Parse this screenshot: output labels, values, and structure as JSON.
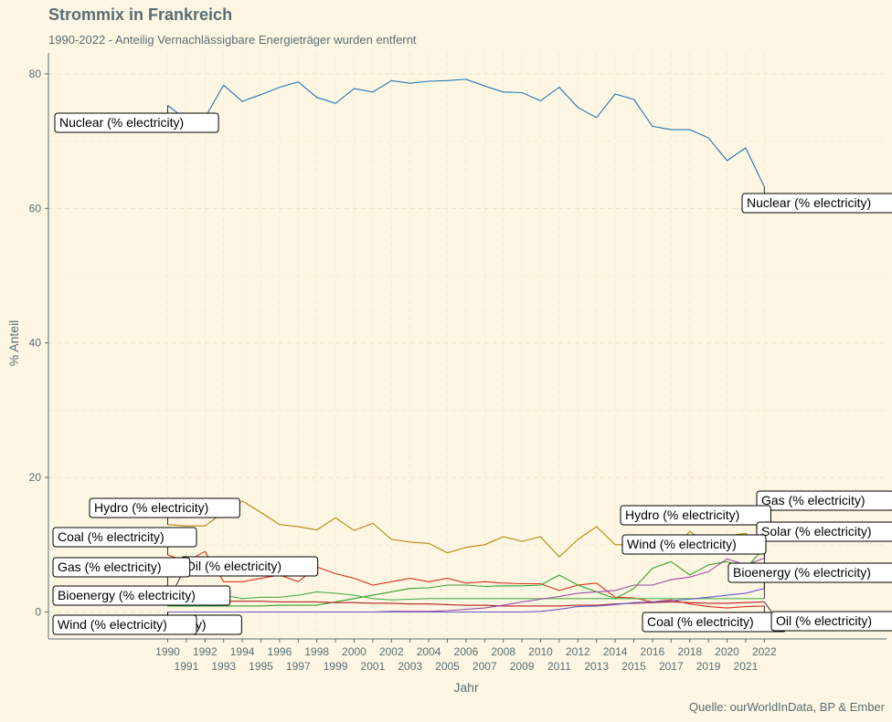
{
  "header": {
    "title": "Strommix in Frankreich",
    "subtitle": "1990-2022 - Anteilig Vernachlässigbare Energieträger wurden entfernt",
    "caption": "Quelle: ourWorldInData, BP & Ember"
  },
  "chart_data": {
    "type": "line",
    "title": "Strommix in Frankreich",
    "subtitle": "1990-2022 - Anteilig Vernachlässigbare Energieträger wurden entfernt",
    "xlabel": "Jahr",
    "ylabel": "% Anteil",
    "xlim": [
      1990,
      2022
    ],
    "ylim": [
      0,
      80
    ],
    "x": [
      1990,
      1991,
      1992,
      1993,
      1994,
      1995,
      1996,
      1997,
      1998,
      1999,
      2000,
      2001,
      2002,
      2003,
      2004,
      2005,
      2006,
      2007,
      2008,
      2009,
      2010,
      2011,
      2012,
      2013,
      2014,
      2015,
      2016,
      2017,
      2018,
      2019,
      2020,
      2021,
      2022
    ],
    "x_ticks": [
      "1990",
      "1991",
      "1992",
      "1993",
      "1994",
      "1995",
      "1996",
      "1997",
      "1998",
      "1999",
      "2000",
      "2001",
      "2002",
      "2003",
      "2004",
      "2005",
      "2006",
      "2007",
      "2008",
      "2009",
      "2010",
      "2011",
      "2012",
      "2013",
      "2014",
      "2015",
      "2016",
      "2017",
      "2018",
      "2019",
      "2020",
      "2021",
      "2022"
    ],
    "y_ticks": [
      "0",
      "20",
      "40",
      "60",
      "80"
    ],
    "grid": true,
    "legend": "none (direct labels at series start and end)",
    "series": [
      {
        "name": "Nuclear (% electricity)",
        "color": "#1f78b4",
        "values": [
          75.3,
          73.2,
          73.5,
          78.3,
          75.9,
          76.9,
          78.0,
          78.8,
          76.5,
          75.6,
          77.8,
          77.3,
          79.0,
          78.6,
          78.9,
          79.0,
          79.2,
          78.2,
          77.3,
          77.2,
          76.0,
          78.0,
          75.0,
          73.5,
          77.0,
          76.2,
          72.2,
          71.7,
          71.7,
          70.5,
          67.1,
          69.0,
          63.2
        ]
      },
      {
        "name": "Hydro (% electricity)",
        "color": "#b8860b",
        "values": [
          13.0,
          12.8,
          12.8,
          14.8,
          16.5,
          14.8,
          13.0,
          12.7,
          12.2,
          14.0,
          12.1,
          13.2,
          10.8,
          10.4,
          10.2,
          8.8,
          9.6,
          10.0,
          11.2,
          10.5,
          11.2,
          8.2,
          10.8,
          12.7,
          10.0,
          10.0,
          11.2,
          9.0,
          12.0,
          10.0,
          11.3,
          11.7,
          9.0
        ]
      },
      {
        "name": "Coal (% electricity)",
        "color": "#d7301f",
        "values": [
          8.5,
          7.5,
          9.0,
          4.5,
          4.5,
          5.0,
          5.5,
          4.5,
          6.7,
          5.7,
          5.0,
          4.0,
          4.5,
          5.0,
          4.5,
          5.0,
          4.3,
          4.5,
          4.3,
          4.2,
          4.2,
          3.2,
          4.0,
          4.3,
          2.2,
          2.1,
          1.5,
          1.8,
          1.2,
          0.8,
          0.6,
          0.8,
          0.9
        ]
      },
      {
        "name": "Gas (% electricity)",
        "color": "#33a02c",
        "values": [
          0.9,
          0.9,
          0.9,
          0.9,
          0.9,
          0.9,
          1.0,
          1.0,
          1.0,
          1.5,
          2.0,
          2.5,
          3.0,
          3.5,
          3.6,
          4.0,
          4.0,
          3.8,
          3.9,
          3.9,
          4.0,
          5.5,
          4.0,
          3.0,
          2.0,
          3.5,
          6.5,
          7.5,
          5.5,
          7.0,
          7.5,
          6.5,
          9.5
        ]
      },
      {
        "name": "Oil (% electricity)",
        "color": "#b22222",
        "values": [
          1.5,
          1.5,
          1.5,
          1.6,
          1.6,
          1.6,
          1.5,
          1.5,
          1.5,
          1.4,
          1.4,
          1.3,
          1.3,
          1.2,
          1.2,
          1.1,
          1.0,
          1.0,
          0.9,
          0.9,
          0.9,
          0.9,
          1.0,
          1.0,
          1.2,
          1.3,
          1.4,
          1.5,
          1.4,
          1.3,
          1.3,
          1.4,
          1.5
        ]
      },
      {
        "name": "Bioenergy (% electricity)",
        "color": "#4daf4a",
        "values": [
          3.8,
          3.5,
          3.0,
          2.5,
          2.0,
          2.2,
          2.2,
          2.5,
          3.0,
          2.8,
          2.5,
          2.0,
          1.8,
          1.9,
          2.0,
          2.0,
          2.0,
          2.0,
          2.0,
          2.0,
          2.0,
          2.0,
          2.0,
          2.0,
          2.0,
          2.0,
          2.0,
          2.0,
          2.0,
          2.0,
          2.0,
          2.0,
          2.0
        ]
      },
      {
        "name": "Wind (% electricity)",
        "color": "#984ea3",
        "values": [
          0,
          0,
          0,
          0,
          0,
          0,
          0,
          0,
          0,
          0,
          0,
          0,
          0.1,
          0.1,
          0.1,
          0.2,
          0.4,
          0.6,
          1.0,
          1.5,
          1.9,
          2.3,
          2.8,
          3.0,
          3.2,
          4.0,
          4.0,
          4.8,
          5.2,
          6.0,
          7.9,
          7.0,
          8.0
        ]
      },
      {
        "name": "Solar (% electricity)",
        "color": "#6a5acd",
        "values": [
          0,
          0,
          0,
          0,
          0,
          0,
          0,
          0,
          0,
          0,
          0,
          0,
          0,
          0,
          0,
          0,
          0,
          0,
          0,
          0,
          0.1,
          0.4,
          0.8,
          0.9,
          1.1,
          1.4,
          1.5,
          1.7,
          1.9,
          2.2,
          2.5,
          2.8,
          3.5
        ]
      }
    ]
  },
  "labels": {
    "start": [
      {
        "text": "Nuclear (% electricity)",
        "series": 0
      },
      {
        "text": "Hydro (% electricity)",
        "series": 1
      },
      {
        "text": "Coal (% electricity)",
        "series": 2
      },
      {
        "text": "Oil (% electricity)",
        "series": 4
      },
      {
        "text": "Gas (% electricity)",
        "series": 3
      },
      {
        "text": "Bioenergy (% electricity)",
        "series": 5
      },
      {
        "text": "Solar (% electricity)",
        "series": 7
      },
      {
        "text": "Wind (% electricity)",
        "series": 6
      }
    ],
    "end": [
      {
        "text": "Nuclear (% electricity)",
        "series": 0
      },
      {
        "text": "Gas (% electricity)",
        "series": 3
      },
      {
        "text": "Hydro (% electricity)",
        "series": 1
      },
      {
        "text": "Solar (% electricity)",
        "series": 7
      },
      {
        "text": "Wind (% electricity)",
        "series": 6
      },
      {
        "text": "Bioenergy (% electricity)",
        "series": 5
      },
      {
        "text": "Coal (% electricity)",
        "series": 2
      },
      {
        "text": "Oil (% electricity)",
        "series": 4
      }
    ]
  }
}
